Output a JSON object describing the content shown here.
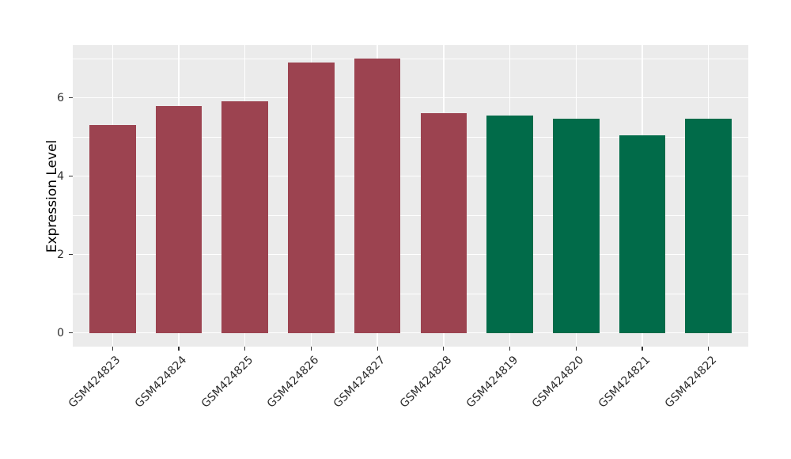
{
  "chart_data": {
    "type": "bar",
    "title": "",
    "xlabel": "",
    "ylabel": "Expression Level",
    "categories": [
      "GSM424823",
      "GSM424824",
      "GSM424825",
      "GSM424826",
      "GSM424827",
      "GSM424828",
      "GSM424819",
      "GSM424820",
      "GSM424821",
      "GSM424822"
    ],
    "values": [
      5.3,
      5.8,
      5.91,
      6.91,
      7.0,
      5.62,
      5.55,
      5.48,
      5.05,
      5.48
    ],
    "bar_colors": [
      "#9C4350",
      "#9C4350",
      "#9C4350",
      "#9C4350",
      "#9C4350",
      "#9C4350",
      "#016B49",
      "#016B49",
      "#016B49",
      "#016B49"
    ],
    "group_colors": {
      "maroon": "#9C4350",
      "green": "#016B49"
    },
    "yticks_major": [
      0,
      2,
      4,
      6
    ],
    "yticks_minor": [
      1,
      3,
      5,
      7
    ],
    "ytick_labels": [
      "0",
      "2",
      "4",
      "6"
    ],
    "ylim": [
      0,
      7.0
    ],
    "bar_width_fraction": 0.7,
    "legend": "none",
    "grid": "white major+minor horizontal, white major vertical at category centers",
    "panel_bg": "#EBEBEB",
    "grid_color": "#FFFFFF",
    "tick_color": "#333333",
    "axis_text_color": "#2b2b2b"
  }
}
